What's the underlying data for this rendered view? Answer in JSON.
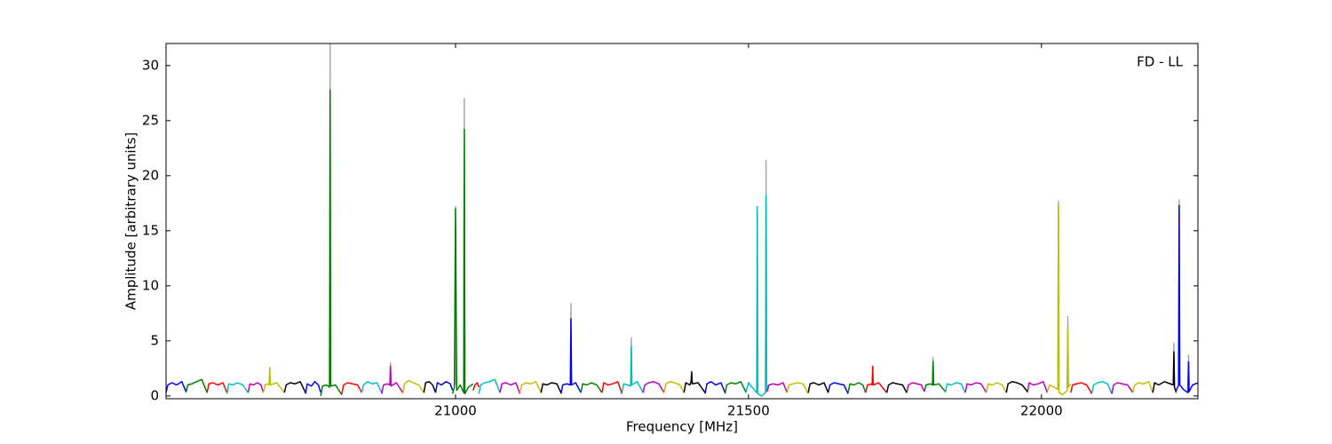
{
  "chart_data": {
    "type": "line",
    "annotation": "FD - LL",
    "x_label": "Frequency [MHz]",
    "y_label": "Amplitude [arbitrary units]",
    "xlim": [
      20506,
      22267
    ],
    "ylim": [
      -0.25,
      32
    ],
    "xticks": [
      21000,
      21500,
      22000
    ],
    "yticks": [
      0,
      5,
      10,
      15,
      20,
      25,
      30
    ],
    "grid": false,
    "series": [
      {
        "color": "#aaaaaa",
        "x": [
          20785,
          20786,
          20787,
          null,
          20888,
          20889,
          20890,
          null,
          20999,
          21000,
          21001,
          null,
          21014,
          21015,
          21016,
          null,
          21196,
          21197,
          21198,
          null,
          21299,
          21300,
          21301,
          null,
          21529,
          21530,
          21531,
          null,
          21814,
          21815,
          21816,
          null,
          22028,
          22029,
          22030,
          null,
          22044,
          22045,
          22046,
          null,
          22225,
          22226,
          22227,
          null,
          22234,
          22235,
          22236,
          null,
          22250,
          22251,
          22252
        ],
        "values": [
          1.0,
          32,
          1.0,
          null,
          1.0,
          3.0,
          1.0,
          null,
          1.0,
          17.2,
          1.0,
          null,
          1.0,
          27.0,
          1.0,
          null,
          1.0,
          8.4,
          1.0,
          null,
          1.0,
          5.3,
          1.0,
          null,
          1.0,
          21.4,
          1.0,
          null,
          1.0,
          3.5,
          1.0,
          null,
          1.0,
          17.7,
          1.0,
          null,
          1.0,
          7.2,
          1.0,
          null,
          1.0,
          4.8,
          1.0,
          null,
          1.0,
          17.8,
          1.0,
          null,
          1.0,
          3.7,
          1.0
        ]
      },
      {
        "color": "#0000ff",
        "x": [
          20506,
          20509,
          20516,
          20524,
          20533,
          20540,
          null,
          20744,
          20747,
          20754,
          20760,
          20766,
          20770,
          null,
          20966,
          20969,
          20976,
          20984,
          20991,
          20995,
          null,
          21180,
          21183,
          21190,
          21196,
          21197,
          21198,
          21205,
          21214,
          null,
          21426,
          21429,
          21436,
          21444,
          21453,
          21460,
          null,
          21636,
          21639,
          21646,
          21654,
          21663,
          21670,
          null,
          22230,
          22234,
          22235,
          22236,
          22242,
          22250,
          22251,
          22252,
          22258,
          22267
        ],
        "values": [
          0.3,
          1.0,
          1.2,
          1.0,
          1.3,
          0.4,
          null,
          0.2,
          1.1,
          0.9,
          1.3,
          1.0,
          0.3,
          null,
          0.3,
          1.2,
          1.0,
          1.3,
          1.1,
          0.5,
          null,
          0.2,
          1.0,
          1.1,
          1.0,
          7.0,
          1.0,
          1.2,
          0.3,
          null,
          0.2,
          1.1,
          1.3,
          1.0,
          1.2,
          0.3,
          null,
          0.3,
          1.0,
          1.2,
          1.1,
          1.0,
          0.2,
          null,
          0.5,
          1.0,
          17.3,
          1.0,
          0.6,
          0.3,
          3.1,
          0.4,
          1.0,
          1.2
        ]
      },
      {
        "color": "#008000",
        "x": [
          20540,
          20543,
          20550,
          20558,
          20567,
          20576,
          null,
          20770,
          20773,
          20780,
          20785,
          20786,
          20787,
          20795,
          20806,
          null,
          20995,
          20998,
          21000,
          21002,
          21008,
          21014,
          21015,
          21016,
          21022,
          21030,
          null,
          21214,
          21217,
          21224,
          21232,
          21241,
          21250,
          null,
          21460,
          21463,
          21470,
          21478,
          21487,
          21496,
          null,
          21670,
          21673,
          21680,
          21688,
          21695,
          21700,
          null,
          21800,
          21803,
          21810,
          21814,
          21815,
          21816,
          21825,
          21836
        ],
        "values": [
          0.3,
          1.0,
          1.1,
          1.3,
          1.5,
          0.3,
          null,
          0.0,
          0.9,
          1.0,
          0.8,
          27.8,
          0.9,
          1.0,
          0.1,
          null,
          0.2,
          0.8,
          17.0,
          0.5,
          1.0,
          0.3,
          24.2,
          0.2,
          0.8,
          1.1,
          null,
          0.3,
          1.1,
          1.0,
          1.2,
          1.0,
          0.3,
          null,
          0.2,
          1.0,
          1.2,
          1.1,
          1.3,
          0.3,
          null,
          0.3,
          1.1,
          1.0,
          1.2,
          1.0,
          0.3,
          null,
          0.4,
          1.0,
          1.1,
          1.0,
          3.1,
          1.0,
          1.1,
          0.4
        ]
      },
      {
        "color": "#ff0000",
        "x": [
          20576,
          20579,
          20586,
          20594,
          20603,
          20610,
          null,
          20806,
          20809,
          20816,
          20824,
          20833,
          20840,
          null,
          21030,
          21033,
          21037,
          21040,
          null,
          21250,
          21253,
          21260,
          21268,
          21277,
          21284,
          null,
          21700,
          21703,
          21710,
          21711,
          21712,
          21713,
          21722,
          21736,
          null,
          22050,
          22053,
          22060,
          22068,
          22077,
          22086
        ],
        "values": [
          0.3,
          1.1,
          1.2,
          1.0,
          1.2,
          0.3,
          null,
          0.2,
          1.0,
          1.2,
          1.1,
          1.0,
          0.3,
          null,
          0.5,
          1.0,
          1.2,
          0.8,
          null,
          0.3,
          1.2,
          1.0,
          1.1,
          1.3,
          0.2,
          null,
          0.3,
          1.0,
          1.1,
          1.0,
          2.7,
          1.0,
          1.2,
          0.3,
          null,
          0.3,
          1.0,
          1.1,
          1.2,
          1.0,
          0.2
        ]
      },
      {
        "color": "#00bfbf",
        "x": [
          20610,
          20613,
          20620,
          20628,
          20637,
          20646,
          null,
          20840,
          20843,
          20850,
          20858,
          20866,
          20874,
          null,
          21040,
          21043,
          21050,
          21058,
          21067,
          21076,
          null,
          21284,
          21287,
          21294,
          21299,
          21300,
          21301,
          21310,
          21320,
          null,
          21496,
          21500,
          21506,
          21514,
          21515,
          21516,
          21522,
          21529,
          21530,
          21531,
          21532,
          null,
          21836,
          21839,
          21846,
          21854,
          21863,
          21870,
          null,
          22086,
          22089,
          22096,
          22104,
          22113,
          22120
        ],
        "values": [
          0.2,
          1.1,
          1.0,
          1.2,
          1.0,
          0.3,
          null,
          0.3,
          1.0,
          1.3,
          1.1,
          1.2,
          0.3,
          null,
          0.2,
          1.0,
          1.2,
          1.3,
          1.5,
          0.3,
          null,
          0.3,
          1.1,
          1.0,
          0.9,
          4.5,
          1.0,
          1.3,
          0.3,
          null,
          0.4,
          1.2,
          0.8,
          0.3,
          17.2,
          0.2,
          0.0,
          0.3,
          18.2,
          0.4,
          1.0,
          null,
          0.3,
          1.1,
          1.0,
          1.2,
          1.1,
          0.3,
          null,
          0.3,
          1.0,
          1.2,
          1.3,
          1.1,
          0.2
        ]
      },
      {
        "color": "#bf00bf",
        "x": [
          20646,
          20649,
          20655,
          20662,
          20668,
          20672,
          null,
          20874,
          20877,
          20884,
          20888,
          20889,
          20890,
          20899,
          20910,
          null,
          21076,
          21079,
          21086,
          21094,
          21103,
          21110,
          null,
          21320,
          21323,
          21330,
          21338,
          21347,
          21356,
          null,
          21532,
          21535,
          21542,
          21550,
          21559,
          21566,
          null,
          21770,
          21773,
          21780,
          21788,
          21795,
          21800,
          null,
          21870,
          21873,
          21880,
          21888,
          21897,
          21906,
          null,
          21976,
          21979,
          21986,
          21994,
          22003,
          22010,
          null,
          22120,
          22123,
          22130,
          22138,
          22147,
          22156
        ],
        "values": [
          0.3,
          1.1,
          1.0,
          1.2,
          1.0,
          0.3,
          null,
          0.2,
          1.0,
          1.1,
          1.0,
          2.7,
          0.9,
          1.2,
          0.3,
          null,
          0.3,
          1.1,
          1.2,
          1.0,
          1.2,
          0.2,
          null,
          0.3,
          1.0,
          1.2,
          1.3,
          1.1,
          0.3,
          null,
          0.4,
          1.0,
          1.1,
          1.0,
          1.2,
          0.3,
          null,
          0.3,
          1.0,
          1.2,
          1.1,
          1.0,
          0.4,
          null,
          0.3,
          1.1,
          1.0,
          1.2,
          1.1,
          0.3,
          null,
          0.3,
          1.2,
          1.0,
          1.1,
          1.3,
          0.3,
          null,
          0.2,
          1.0,
          1.2,
          1.1,
          1.0,
          0.3
        ]
      },
      {
        "color": "#bfbf00",
        "x": [
          20672,
          20675,
          20681,
          20682,
          20683,
          20684,
          20695,
          20708,
          null,
          20910,
          20913,
          20920,
          20928,
          20937,
          20946,
          null,
          21110,
          21113,
          21120,
          21128,
          21137,
          21146,
          null,
          21356,
          21359,
          21366,
          21374,
          21383,
          21390,
          null,
          21566,
          21569,
          21576,
          21584,
          21593,
          21602,
          null,
          21906,
          21909,
          21916,
          21924,
          21933,
          21940,
          null,
          22010,
          22014,
          22022,
          22028,
          22029,
          22030,
          22036,
          22044,
          22045,
          22046,
          22050,
          null,
          22156,
          22159,
          22166,
          22174,
          22183,
          22190
        ],
        "values": [
          0.3,
          1.0,
          1.1,
          1.0,
          2.6,
          1.0,
          1.2,
          0.3,
          null,
          0.2,
          1.1,
          1.4,
          1.2,
          1.0,
          0.3,
          null,
          0.3,
          1.0,
          1.2,
          1.1,
          1.3,
          0.3,
          null,
          0.3,
          1.1,
          1.3,
          1.2,
          1.0,
          0.3,
          null,
          0.3,
          1.0,
          1.1,
          1.2,
          1.1,
          0.2,
          null,
          0.3,
          1.1,
          1.0,
          1.2,
          1.0,
          0.3,
          null,
          0.4,
          1.0,
          0.8,
          0.6,
          17.5,
          0.3,
          0.1,
          0.5,
          6.1,
          0.8,
          1.1,
          null,
          0.3,
          1.0,
          1.2,
          1.1,
          1.3,
          0.3
        ]
      },
      {
        "color": "#000000",
        "x": [
          20708,
          20711,
          20718,
          20726,
          20735,
          20744,
          null,
          20946,
          20949,
          20955,
          20961,
          20966,
          null,
          21146,
          21149,
          21156,
          21164,
          21173,
          21180,
          null,
          21390,
          21393,
          21400,
          21402,
          21403,
          21404,
          21414,
          21426,
          null,
          21602,
          21605,
          21612,
          21620,
          21629,
          21636,
          null,
          21736,
          21739,
          21746,
          21754,
          21763,
          21770,
          null,
          21940,
          21943,
          21950,
          21958,
          21967,
          21976,
          null,
          22190,
          22193,
          22200,
          22210,
          22220,
          22225,
          22226,
          22227,
          22230
        ],
        "values": [
          0.3,
          1.0,
          1.2,
          1.1,
          1.3,
          0.3,
          null,
          0.3,
          1.2,
          1.3,
          1.0,
          0.3,
          null,
          0.3,
          1.1,
          1.0,
          1.2,
          1.1,
          0.3,
          null,
          0.3,
          1.2,
          1.0,
          1.3,
          2.2,
          1.1,
          1.2,
          0.3,
          null,
          0.3,
          1.1,
          1.2,
          1.0,
          1.2,
          0.3,
          null,
          0.3,
          1.0,
          1.2,
          1.1,
          1.0,
          0.3,
          null,
          0.3,
          1.1,
          1.3,
          1.2,
          1.0,
          0.4,
          null,
          0.3,
          1.2,
          1.0,
          1.3,
          1.1,
          1.0,
          4.0,
          0.8,
          0.3
        ]
      }
    ]
  }
}
